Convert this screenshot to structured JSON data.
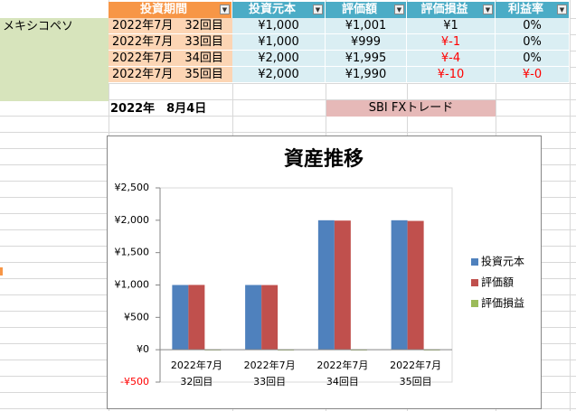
{
  "table": {
    "label": "メキシコペソ",
    "headers": [
      "投資期間",
      "投資元本",
      "評価額",
      "評価損益",
      "利益率"
    ],
    "rows": [
      [
        "2022年7月　32回目",
        "¥1,000",
        "¥1,001",
        "¥1",
        "0%"
      ],
      [
        "2022年7月　33回目",
        "¥1,000",
        "¥999",
        "¥-1",
        "0%"
      ],
      [
        "2022年7月　34回目",
        "¥2,000",
        "¥1,995",
        "¥-4",
        "0%"
      ],
      [
        "2022年7月　35回目",
        "¥2,000",
        "¥1,990",
        "¥-10",
        "¥-0"
      ]
    ],
    "date": "2022年　8月4日",
    "broker": "SBI FXトレード"
  },
  "chart_data": {
    "type": "bar",
    "title": "資産推移",
    "categories": [
      [
        "2022年7月",
        "32回目"
      ],
      [
        "2022年7月",
        "33回目"
      ],
      [
        "2022年7月",
        "34回目"
      ],
      [
        "2022年7月",
        "35回目"
      ]
    ],
    "series": [
      {
        "name": "投資元本",
        "color": "#4f81bd",
        "values": [
          1000,
          1000,
          2000,
          2000
        ]
      },
      {
        "name": "評価額",
        "color": "#c0504d",
        "values": [
          1001,
          999,
          1995,
          1990
        ]
      },
      {
        "name": "評価損益",
        "color": "#9bbb59",
        "values": [
          1,
          -1,
          -4,
          -10
        ]
      }
    ],
    "ylim": [
      -500,
      2500
    ],
    "yticks": [
      {
        "value": -500,
        "label": "-¥500"
      },
      {
        "value": 0,
        "label": "¥0"
      },
      {
        "value": 500,
        "label": "¥500"
      },
      {
        "value": 1000,
        "label": "¥1,000"
      },
      {
        "value": 1500,
        "label": "¥1,500"
      },
      {
        "value": 2000,
        "label": "¥2,000"
      },
      {
        "value": 2500,
        "label": "¥2,500"
      }
    ],
    "grid": false,
    "legend": "right"
  }
}
